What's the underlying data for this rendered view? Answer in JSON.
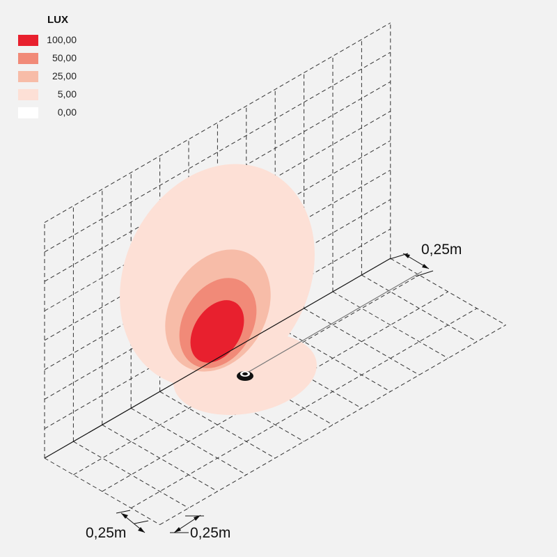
{
  "legend": {
    "title": "LUX",
    "items": [
      {
        "value": "100,00",
        "color": "#e8202e"
      },
      {
        "value": "50,00",
        "color": "#f18a78"
      },
      {
        "value": "25,00",
        "color": "#f7bca8"
      },
      {
        "value": "5,00",
        "color": "#fde0d6"
      },
      {
        "value": "0,00",
        "color": "#ffffff"
      }
    ]
  },
  "dimensions": {
    "top_right": "0,25m",
    "bottom_left": "0,25m",
    "bottom_right": "0,25m"
  },
  "colors": {
    "background": "#f2f2f2",
    "grid": "#333333"
  },
  "icons": {
    "luminaire": "recessed-spotlight-icon"
  }
}
